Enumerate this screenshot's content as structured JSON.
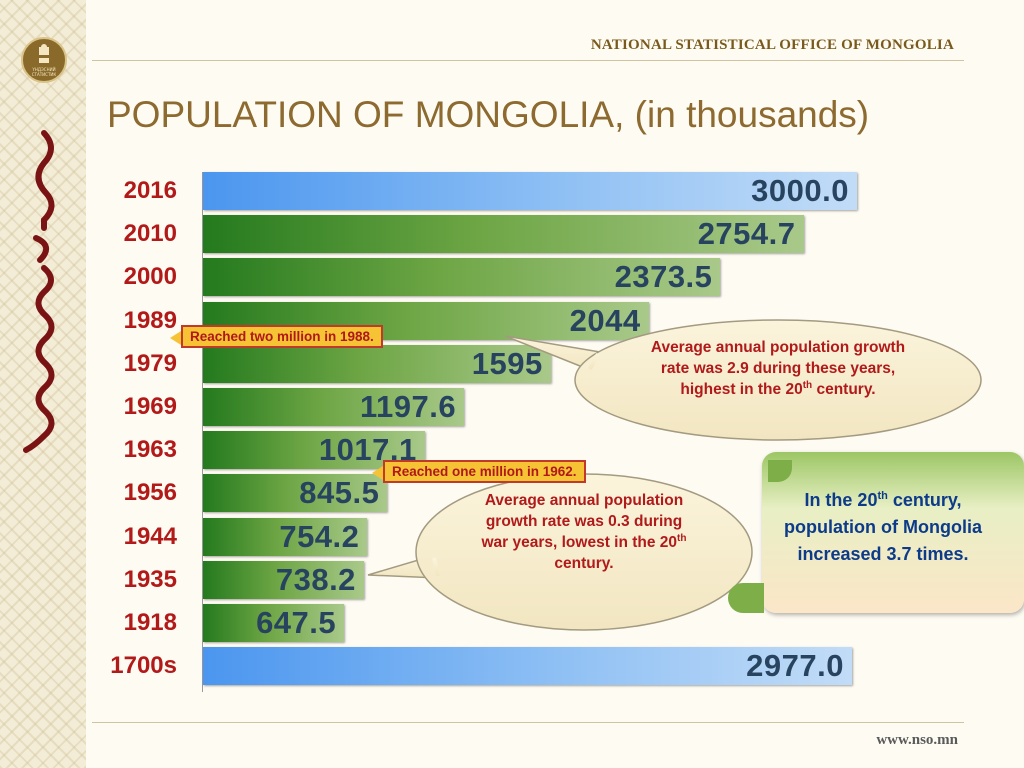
{
  "header": {
    "org": "NATIONAL STATISTICAL OFFICE OF MONGOLIA",
    "logo_text": "ҮНДЭСНИЙ СТАТИСТИК"
  },
  "footer": {
    "url": "www.nso.mn"
  },
  "chart_data": {
    "type": "bar",
    "orientation": "horizontal",
    "title": "POPULATION OF MONGOLIA, (in thousands)",
    "categories": [
      "2016",
      "2010",
      "2000",
      "1989",
      "1979",
      "1969",
      "1963",
      "1956",
      "1944",
      "1935",
      "1918",
      "1700s"
    ],
    "values": [
      3000.0,
      2754.7,
      2373.5,
      2044,
      1595,
      1197.6,
      1017.1,
      845.5,
      754.2,
      738.2,
      647.5,
      2977.0
    ],
    "value_labels": [
      "3000.0",
      "2754.7",
      "2373.5",
      "2044",
      "1595",
      "1197.6",
      "1017.1",
      "845.5",
      "754.2",
      "738.2",
      "647.5",
      "2977.0"
    ],
    "highlight_categories": [
      "2016",
      "1700s"
    ],
    "colors": {
      "default_bar": "#4f8f33",
      "highlight_bar": "#6aaaf2",
      "category_labels": "#b21a1a",
      "value_labels": "#27435f"
    }
  },
  "annotations": {
    "tag_1989": "Reached two million in 1988.",
    "tag_1963": "Reached one million in 1962.",
    "bubble_high": {
      "pre": "Average annual population growth  rate was 2.9 during these years, highest in the 20",
      "sup": "th",
      "post": " century."
    },
    "bubble_low": {
      "pre": "Average annual population growth rate was 0.3 during war years, lowest in the 20",
      "sup": "th",
      "post": " century."
    },
    "note": {
      "pre": "In the 20",
      "sup": "th",
      "post": " century, population of Mongolia increased 3.7 times."
    }
  }
}
